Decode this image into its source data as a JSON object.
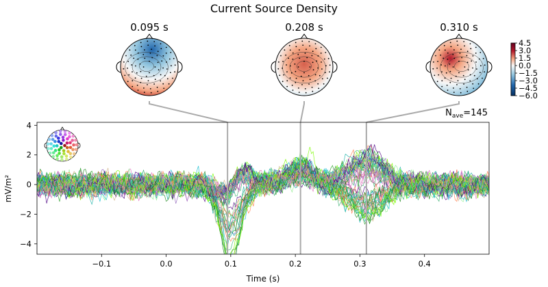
{
  "chart_data": {
    "type": "line",
    "title": "Current Source Density",
    "xlabel": "Time (s)",
    "ylabel": "mV/m²",
    "xlim": [
      -0.2,
      0.5
    ],
    "ylim": [
      -4.7,
      4.2
    ],
    "x_ticks": [
      -0.1,
      0.0,
      0.1,
      0.2,
      0.3,
      0.4
    ],
    "x_tick_labels": [
      "−0.1",
      "0.0",
      "0.1",
      "0.2",
      "0.3",
      "0.4"
    ],
    "y_ticks": [
      -4,
      -2,
      0,
      2,
      4
    ],
    "y_tick_labels": [
      "−4",
      "−2",
      "0",
      "2",
      "4"
    ],
    "annotation_nave": {
      "text": "N",
      "subscript": "ave",
      "value": "=145"
    },
    "topomap_times": [
      0.095,
      0.208,
      0.31
    ],
    "topomap_labels": [
      "0.095 s",
      "0.208 s",
      "0.310 s"
    ],
    "colorbar": {
      "cmap": "RdBu_r",
      "range": [
        -6.0,
        4.5
      ],
      "ticks": [
        4.5,
        3.0,
        1.5,
        0.0,
        -1.5,
        -3.0,
        -4.5,
        -6.0
      ],
      "tick_labels": [
        "4.5",
        "3.0",
        "1.5",
        "0.0",
        "−1.5",
        "−3.0",
        "−4.5",
        "−6.0"
      ]
    },
    "series_count": 60,
    "series_palette": [
      "#2ca02c",
      "#17becf",
      "#90ee90",
      "#3cb371",
      "#e377c2",
      "#ff7f50",
      "#9467bd",
      "#4b0082",
      "#d2b48c",
      "#20b2aa",
      "#228b22",
      "#7cfc00"
    ],
    "noise_sd": 0.45,
    "erp_components": [
      {
        "t": 0.095,
        "amp": -1.6,
        "width": 0.02
      },
      {
        "t": 0.105,
        "amp": 1.4,
        "width": 0.025
      },
      {
        "t": 0.208,
        "amp": 0.8,
        "width": 0.03
      },
      {
        "t": 0.31,
        "amp": 1.2,
        "width": 0.04
      }
    ]
  }
}
